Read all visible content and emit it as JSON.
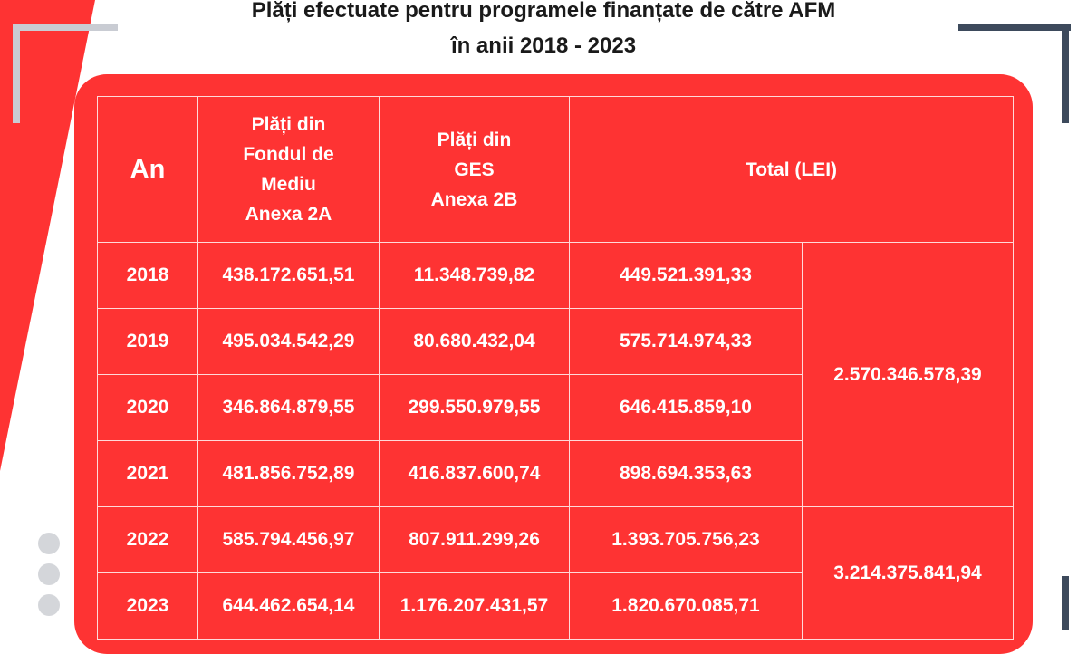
{
  "title": {
    "line1": "Plăți efectuate pentru programele finanțate de către AFM",
    "line2": "în anii 2018 - 2023"
  },
  "colors": {
    "panel": "#fe3333",
    "text": "#ffffff",
    "stripe": "#fe3333"
  },
  "table": {
    "headers": {
      "year": "An",
      "fondul_lines": [
        "Plăți din",
        "Fondul de",
        "Mediu",
        "Anexa 2A"
      ],
      "ges_lines": [
        "Plăți din",
        "GES",
        "Anexa 2B"
      ],
      "total": "Total (LEI)"
    },
    "rows": [
      {
        "year": "2018",
        "fondul": "438.172.651,51",
        "ges": "11.348.739,82",
        "total": "449.521.391,33"
      },
      {
        "year": "2019",
        "fondul": "495.034.542,29",
        "ges": "80.680.432,04",
        "total": "575.714.974,33"
      },
      {
        "year": "2020",
        "fondul": "346.864.879,55",
        "ges": "299.550.979,55",
        "total": "646.415.859,10"
      },
      {
        "year": "2021",
        "fondul": "481.856.752,89",
        "ges": "416.837.600,74",
        "total": "898.694.353,63"
      },
      {
        "year": "2022",
        "fondul": "585.794.456,97",
        "ges": "807.911.299,26",
        "total": "1.393.705.756,23"
      },
      {
        "year": "2023",
        "fondul": "644.462.654,14",
        "ges": "1.176.207.431,57",
        "total": "1.820.670.085,71"
      }
    ],
    "group_totals": [
      "2.570.346.578,39",
      "3.214.375.841,94"
    ]
  }
}
